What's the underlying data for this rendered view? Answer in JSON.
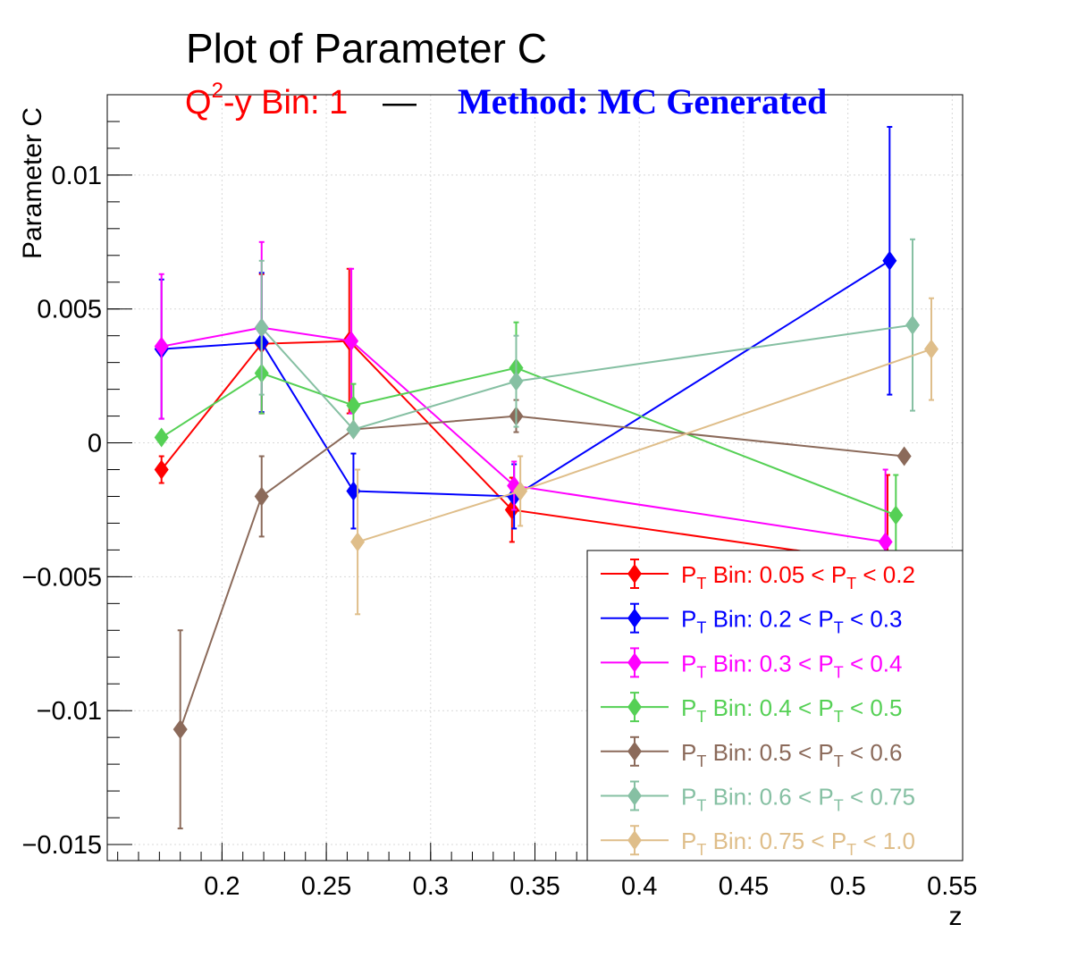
{
  "colors": {
    "title": "#000000",
    "subtitle_left": "#ff0000",
    "subtitle_sep": "#000000",
    "subtitle_right": "#0000ff",
    "grid": "#d8d8d8",
    "axes": "#000000"
  },
  "chart_data": {
    "type": "line",
    "title": "Plot of Parameter C",
    "subtitle_left": {
      "text": "Q",
      "sup": "2",
      "rest": "-y Bin: 1"
    },
    "subtitle_sep": "—",
    "subtitle_right": "Method: MC Generated",
    "xlabel": "z",
    "ylabel": "Parameter C",
    "xlim": [
      0.145,
      0.555
    ],
    "ylim": [
      -0.0156,
      0.013
    ],
    "xticks": [
      {
        "v": 0.2,
        "label": "0.2"
      },
      {
        "v": 0.25,
        "label": "0.25"
      },
      {
        "v": 0.3,
        "label": "0.3"
      },
      {
        "v": 0.35,
        "label": "0.35"
      },
      {
        "v": 0.4,
        "label": "0.4"
      },
      {
        "v": 0.45,
        "label": "0.45"
      },
      {
        "v": 0.5,
        "label": "0.5"
      },
      {
        "v": 0.55,
        "label": "0.55"
      }
    ],
    "yticks": [
      {
        "v": 0.01,
        "label": "0.01"
      },
      {
        "v": 0.005,
        "label": "0.005"
      },
      {
        "v": 0,
        "label": "0"
      },
      {
        "v": -0.005,
        "label": "−0.005"
      },
      {
        "v": -0.01,
        "label": "−0.01"
      },
      {
        "v": -0.015,
        "label": "−0.015"
      }
    ],
    "grid": true,
    "legend_position": "bottom-right",
    "series": [
      {
        "name": "0.05 < P",
        "name_end": " < 0.2",
        "color": "#ff0000",
        "x": [
          0.171,
          0.219,
          0.261,
          0.339,
          0.519
        ],
        "y": [
          -0.001,
          0.0037,
          0.0038,
          -0.0025,
          -0.0045
        ],
        "err": [
          0.0005,
          0.0026,
          0.0027,
          0.0012,
          0.0033
        ]
      },
      {
        "name": "0.2 < P",
        "name_end": " < 0.3",
        "color": "#0000ff",
        "x": [
          0.171,
          0.219,
          0.263,
          0.34,
          0.52
        ],
        "y": [
          0.0035,
          0.00375,
          -0.0018,
          -0.002,
          0.0068
        ],
        "err": [
          0.0026,
          0.0026,
          0.0014,
          0.0012,
          0.005
        ]
      },
      {
        "name": "0.3 < P",
        "name_end": " < 0.4",
        "color": "#ff00ff",
        "x": [
          0.171,
          0.219,
          0.262,
          0.34,
          0.518
        ],
        "y": [
          0.0036,
          0.0043,
          0.0038,
          -0.0016,
          -0.0037
        ],
        "err": [
          0.0027,
          0.0032,
          0.0027,
          0.0009,
          0.0027
        ]
      },
      {
        "name": "0.4 < P",
        "name_end": " < 0.5",
        "color": "#55d055",
        "x": [
          0.171,
          0.219,
          0.263,
          0.341,
          0.523
        ],
        "y": [
          0.0002,
          0.0026,
          0.0014,
          0.0028,
          -0.0027
        ],
        "err": [
          0.0001,
          0.0015,
          0.0008,
          0.0017,
          0.0015
        ]
      },
      {
        "name": "0.5 < P",
        "name_end": " < 0.6",
        "color": "#8b6a5a",
        "x": [
          0.18,
          0.219,
          0.263,
          0.341,
          0.527
        ],
        "y": [
          -0.0107,
          -0.002,
          0.0005,
          0.001,
          -0.0005
        ],
        "err": [
          0.0037,
          0.0015,
          0.0001,
          0.0006,
          0.0001
        ]
      },
      {
        "name": "0.6 < P",
        "name_end": " < 0.75",
        "color": "#86c0a3",
        "x": [
          0.219,
          0.263,
          0.341,
          0.531
        ],
        "y": [
          0.0043,
          0.0005,
          0.0023,
          0.0044
        ],
        "err": [
          0.0025,
          0.0001,
          0.0017,
          0.0032
        ]
      },
      {
        "name": "0.75 < P",
        "name_end": " < 1.0",
        "color": "#dfbe8a",
        "x": [
          0.265,
          0.343,
          0.54
        ],
        "y": [
          -0.0037,
          -0.0018,
          0.0035
        ],
        "err": [
          0.0027,
          0.0013,
          0.0019
        ]
      }
    ],
    "legend_prefix": "P",
    "legend_sub": "T",
    "legend_bin": " Bin: "
  }
}
